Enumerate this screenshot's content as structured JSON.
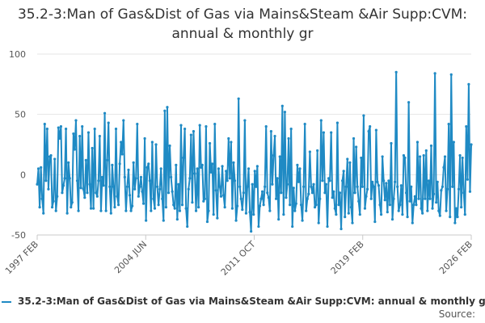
{
  "chart_data": {
    "type": "line",
    "title": "35.2-3:Man of Gas&Dist of Gas via Mains&Steam &Air Supp:CVM: annual & monthly gr",
    "series_name": "35.2-3:Man of Gas&Dist of Gas via Mains&Steam &Air Supp:CVM: annual & monthly gr",
    "x_start": "1997 FEB",
    "x_end": "2026 FEB",
    "x_ticks": [
      "1997 FEB",
      "2004 JUN",
      "2011 OCT",
      "2019 FEB",
      "2026 FEB"
    ],
    "y_ticks": [
      "100",
      "50",
      "0",
      "-50"
    ],
    "ylim": [
      -50,
      100
    ],
    "grid": true,
    "legend_position": "bottom",
    "color": "#1f8ac4",
    "values": [
      -8,
      5,
      -27,
      6,
      -20,
      -32,
      42,
      -5,
      38,
      -12,
      15,
      16,
      -27,
      -22,
      13,
      -30,
      -18,
      39,
      30,
      40,
      -15,
      -9,
      -3,
      38,
      -32,
      10,
      -3,
      -27,
      -23,
      34,
      21,
      45,
      -5,
      -30,
      32,
      -11,
      40,
      -12,
      -19,
      12,
      -15,
      35,
      -8,
      -28,
      22,
      -28,
      38,
      -15,
      -18,
      -5,
      32,
      -30,
      -2,
      -9,
      51,
      -30,
      12,
      43,
      -10,
      -32,
      8,
      -10,
      -27,
      38,
      -18,
      -25,
      9,
      27,
      17,
      45,
      -2,
      -30,
      -10,
      4,
      -17,
      -30,
      -26,
      10,
      -12,
      -3,
      42,
      -18,
      -10,
      -2,
      -14,
      -24,
      30,
      -38,
      6,
      9,
      -5,
      -30,
      27,
      -20,
      -28,
      25,
      -10,
      -25,
      -12,
      5,
      -20,
      -38,
      53,
      -27,
      56,
      -15,
      24,
      -2,
      -14,
      -25,
      -28,
      8,
      -37,
      -8,
      -30,
      41,
      -25,
      14,
      38,
      -28,
      -43,
      -12,
      -3,
      33,
      -23,
      36,
      1,
      -30,
      5,
      -27,
      41,
      6,
      8,
      -22,
      -20,
      40,
      -39,
      -30,
      26,
      2,
      9,
      -33,
      42,
      -13,
      -36,
      5,
      -10,
      -18,
      7,
      -17,
      -27,
      3,
      -5,
      30,
      -3,
      27,
      -28,
      10,
      -5,
      -38,
      -26,
      63,
      -10,
      -20,
      -29,
      -15,
      45,
      -32,
      -10,
      5,
      -31,
      -47,
      -8,
      -33,
      3,
      -10,
      7,
      -43,
      -26,
      -20,
      -14,
      -25,
      -10,
      40,
      -15,
      -19,
      -30,
      36,
      -8,
      16,
      32,
      -20,
      -3,
      -37,
      15,
      -15,
      57,
      -33,
      52,
      -19,
      -8,
      30,
      -25,
      38,
      -43,
      -11,
      -30,
      -24,
      8,
      -6,
      5,
      -25,
      -38,
      -10,
      42,
      -30,
      -20,
      -16,
      19,
      -10,
      -15,
      -8,
      -27,
      -25,
      20,
      -40,
      -20,
      45,
      -5,
      35,
      -15,
      -8,
      -43,
      -3,
      -5,
      35,
      -19,
      -14,
      -28,
      -33,
      43,
      -25,
      -15,
      -45,
      -5,
      3,
      -35,
      -10,
      13,
      -32,
      10,
      -27,
      -40,
      30,
      -15,
      23,
      -10,
      -22,
      -33,
      14,
      -10,
      49,
      -28,
      -18,
      -12,
      36,
      40,
      -20,
      -6,
      -10,
      -39,
      37,
      -6,
      -9,
      -25,
      -33,
      15,
      -5,
      -21,
      -7,
      -31,
      -5,
      -25,
      26,
      -37,
      -20,
      -6,
      85,
      -10,
      -30,
      -25,
      -9,
      -33,
      16,
      14,
      -15,
      -35,
      60,
      -22,
      -10,
      -40,
      -25,
      -18,
      -25,
      27,
      -20,
      15,
      -28,
      -32,
      16,
      -20,
      20,
      -30,
      -5,
      -20,
      24,
      -28,
      -16,
      84,
      -23,
      -6,
      -30,
      -34,
      -13,
      -10,
      6,
      15,
      -30,
      -12,
      42,
      -35,
      83,
      -10,
      27,
      -40,
      -28,
      -35,
      -12,
      16,
      -27,
      14,
      -15,
      -33,
      40,
      -4,
      75,
      -14,
      25
    ]
  }
}
